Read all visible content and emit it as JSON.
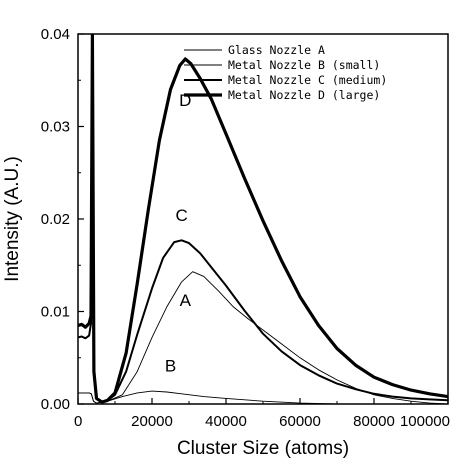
{
  "chart_data": {
    "type": "line",
    "xlabel": "Cluster Size (atoms)",
    "ylabel": "Intensity (A.U.)",
    "xlim": [
      0,
      100000
    ],
    "ylim": [
      0,
      0.04
    ],
    "x_ticks": [
      0,
      20000,
      40000,
      60000,
      80000,
      100000
    ],
    "x_tick_labels": [
      "0",
      "20000",
      "40000",
      "60000",
      "80000",
      "100000"
    ],
    "y_ticks": [
      0,
      0.01,
      0.02,
      0.03,
      0.04
    ],
    "y_tick_labels": [
      "0.00",
      "0.01",
      "0.02",
      "0.03",
      "0.04"
    ],
    "legend_position": "top-right",
    "series": [
      {
        "name": "Glass Nozzle A",
        "label": "A",
        "line_weight": "thin",
        "points": [
          [
            0,
            0.0012
          ],
          [
            3000,
            0.0012
          ],
          [
            3600,
            0.0011
          ],
          [
            4200,
            0.0003
          ],
          [
            5000,
            0.0001
          ],
          [
            8000,
            0.0003
          ],
          [
            12000,
            0.001
          ],
          [
            16000,
            0.0035
          ],
          [
            20000,
            0.0072
          ],
          [
            24000,
            0.0105
          ],
          [
            28000,
            0.0132
          ],
          [
            31000,
            0.0143
          ],
          [
            34000,
            0.0138
          ],
          [
            38000,
            0.0122
          ],
          [
            42000,
            0.0105
          ],
          [
            46000,
            0.0092
          ],
          [
            50000,
            0.008
          ],
          [
            55000,
            0.0065
          ],
          [
            60000,
            0.005
          ],
          [
            65000,
            0.0037
          ],
          [
            70000,
            0.0026
          ],
          [
            75000,
            0.0017
          ],
          [
            80000,
            0.001
          ],
          [
            85000,
            0.0006
          ],
          [
            90000,
            0.0003
          ],
          [
            95000,
            0.0001
          ],
          [
            100000,
            0.0
          ]
        ]
      },
      {
        "name": "Metal Nozzle B (small)",
        "label": "B",
        "line_weight": "thin",
        "points": [
          [
            0,
            0.0012
          ],
          [
            3000,
            0.0012
          ],
          [
            3600,
            0.0011
          ],
          [
            4200,
            0.0003
          ],
          [
            5000,
            0.0001
          ],
          [
            8000,
            0.0003
          ],
          [
            12000,
            0.0008
          ],
          [
            16000,
            0.0012
          ],
          [
            20000,
            0.0014
          ],
          [
            24000,
            0.0013
          ],
          [
            28000,
            0.0011
          ],
          [
            34000,
            0.0008
          ],
          [
            40000,
            0.0006
          ],
          [
            50000,
            0.0003
          ],
          [
            60000,
            0.0001
          ],
          [
            70000,
            0.0
          ],
          [
            100000,
            0.0
          ]
        ]
      },
      {
        "name": "Metal Nozzle C (medium)",
        "label": "C",
        "line_weight": "medium",
        "points": [
          [
            0,
            0.0072
          ],
          [
            1000,
            0.0073
          ],
          [
            2000,
            0.0071
          ],
          [
            3000,
            0.0074
          ],
          [
            3500,
            0.0087
          ],
          [
            3900,
            0.04
          ],
          [
            4300,
            0.0035
          ],
          [
            5000,
            0.0006
          ],
          [
            6500,
            0.0002
          ],
          [
            8000,
            0.0004
          ],
          [
            10000,
            0.001
          ],
          [
            13000,
            0.0035
          ],
          [
            16000,
            0.0075
          ],
          [
            20000,
            0.0125
          ],
          [
            23000,
            0.0158
          ],
          [
            26000,
            0.0175
          ],
          [
            28000,
            0.0177
          ],
          [
            30000,
            0.0174
          ],
          [
            33000,
            0.0163
          ],
          [
            36000,
            0.0148
          ],
          [
            40000,
            0.0128
          ],
          [
            45000,
            0.0101
          ],
          [
            50000,
            0.0076
          ],
          [
            55000,
            0.0057
          ],
          [
            60000,
            0.0042
          ],
          [
            65000,
            0.0031
          ],
          [
            70000,
            0.0022
          ],
          [
            75000,
            0.0016
          ],
          [
            80000,
            0.0011
          ],
          [
            85000,
            0.0008
          ],
          [
            90000,
            0.0006
          ],
          [
            95000,
            0.0005
          ],
          [
            100000,
            0.0004
          ]
        ]
      },
      {
        "name": "Metal Nozzle D (large)",
        "label": "D",
        "line_weight": "thick",
        "points": [
          [
            0,
            0.0085
          ],
          [
            1000,
            0.0086
          ],
          [
            2000,
            0.0083
          ],
          [
            3000,
            0.0087
          ],
          [
            3500,
            0.0095
          ],
          [
            3900,
            0.04
          ],
          [
            4300,
            0.0035
          ],
          [
            5000,
            0.0006
          ],
          [
            6500,
            0.0002
          ],
          [
            8000,
            0.0004
          ],
          [
            10000,
            0.0012
          ],
          [
            13000,
            0.0055
          ],
          [
            16000,
            0.013
          ],
          [
            19000,
            0.021
          ],
          [
            22000,
            0.0285
          ],
          [
            25000,
            0.034
          ],
          [
            27500,
            0.0366
          ],
          [
            29000,
            0.0373
          ],
          [
            30500,
            0.0368
          ],
          [
            33000,
            0.0352
          ],
          [
            36000,
            0.033
          ],
          [
            40000,
            0.0292
          ],
          [
            45000,
            0.0244
          ],
          [
            50000,
            0.0198
          ],
          [
            55000,
            0.0155
          ],
          [
            60000,
            0.0116
          ],
          [
            65000,
            0.0085
          ],
          [
            70000,
            0.006
          ],
          [
            75000,
            0.0042
          ],
          [
            80000,
            0.0029
          ],
          [
            85000,
            0.0021
          ],
          [
            90000,
            0.0015
          ],
          [
            95000,
            0.0011
          ],
          [
            100000,
            0.0008
          ]
        ]
      }
    ]
  }
}
